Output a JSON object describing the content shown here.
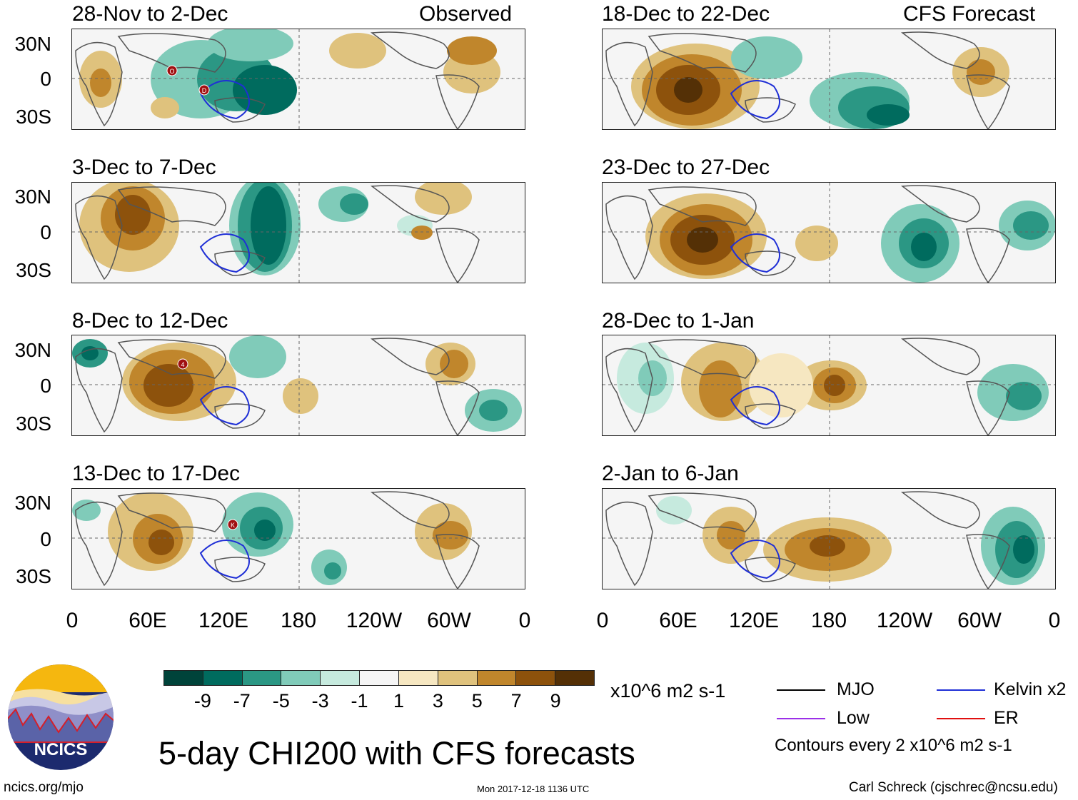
{
  "panels": [
    {
      "title": "28-Nov to 2-Dec",
      "label": "Observed"
    },
    {
      "title": "3-Dec to 7-Dec",
      "label": ""
    },
    {
      "title": "8-Dec to 12-Dec",
      "label": ""
    },
    {
      "title": "13-Dec to 17-Dec",
      "label": ""
    },
    {
      "title": "18-Dec to 22-Dec",
      "label": "CFS Forecast"
    },
    {
      "title": "23-Dec to 27-Dec",
      "label": ""
    },
    {
      "title": "28-Dec to 1-Jan",
      "label": ""
    },
    {
      "title": "2-Jan to 6-Jan",
      "label": ""
    }
  ],
  "lat_labels": [
    "30N",
    "0",
    "30S"
  ],
  "lon_labels": [
    "0",
    "60E",
    "120E",
    "180",
    "120W",
    "60W",
    "0"
  ],
  "storm_markers": [
    {
      "panel": 0,
      "label": "O"
    },
    {
      "panel": 0,
      "label": "D"
    },
    {
      "panel": 2,
      "label": "4"
    },
    {
      "panel": 3,
      "label": "K"
    }
  ],
  "colorbar": {
    "colors": [
      "#00433a",
      "#006b5e",
      "#2b9784",
      "#80cbb9",
      "#c6eade",
      "#f5f5f5",
      "#f6e7c1",
      "#dfc27d",
      "#c0862c",
      "#8d520c",
      "#543006"
    ],
    "labels": [
      "-9",
      "-7",
      "-5",
      "-3",
      "-1",
      "1",
      "3",
      "5",
      "7",
      "9"
    ],
    "units": "x10^6 m2 s-1"
  },
  "legend": {
    "items": [
      {
        "label": "MJO",
        "color": "#000000"
      },
      {
        "label": "Kelvin x2",
        "color": "#1f2fd6"
      },
      {
        "label": "Low",
        "color": "#9b30e8"
      },
      {
        "label": "ER",
        "color": "#e01010"
      }
    ],
    "contours_note": "Contours every 2 x10^6 m2 s-1"
  },
  "logo_text": "NCICS",
  "main_title": "5-day CHI200 with CFS forecasts",
  "url": "ncics.org/mjo",
  "timestamp": "Mon 2017-12-18 1136 UTC",
  "credit": "Carl Schreck (cjschrec@ncsu.edu)"
}
